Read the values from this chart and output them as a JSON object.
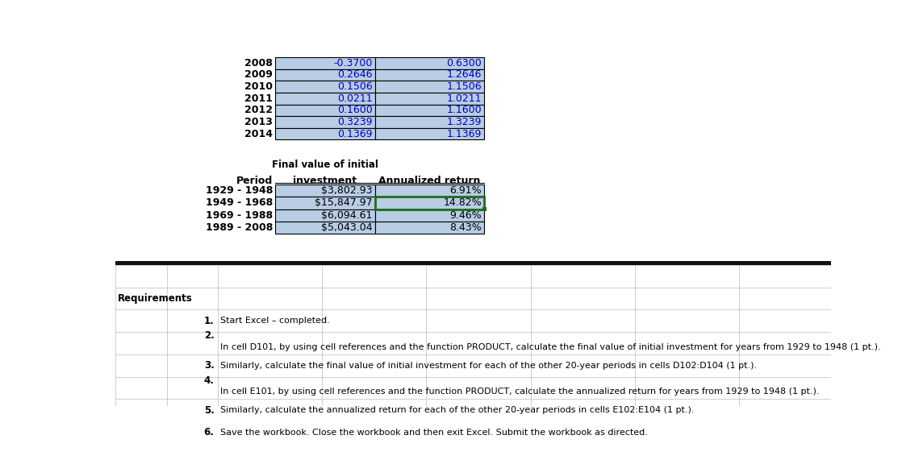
{
  "top_table": {
    "years": [
      "2008",
      "2009",
      "2010",
      "2011",
      "2012",
      "2013",
      "2014"
    ],
    "col1": [
      "-0.3700",
      "0.2646",
      "0.1506",
      "0.0211",
      "0.1600",
      "0.3239",
      "0.1369"
    ],
    "col2": [
      "0.6300",
      "1.2646",
      "1.1506",
      "1.0211",
      "1.1600",
      "1.3239",
      "1.1369"
    ]
  },
  "bottom_table": {
    "periods": [
      "1929 - 1948",
      "1949 - 1968",
      "1969 - 1988",
      "1989 - 2008"
    ],
    "final_values": [
      "$3,802.93",
      "$15,847.97",
      "$6,094.61",
      "$5,043.04"
    ],
    "annualized": [
      "6.91%",
      "14.82%",
      "9.46%",
      "8.43%"
    ]
  },
  "requirements": [
    {
      "num": "1.",
      "text1": "Start Excel – completed.",
      "text2": "",
      "indent": false
    },
    {
      "num": "2.",
      "text1": "",
      "text2": "In cell D101, by using cell references and the function PRODUCT, calculate the final value of initial investment for years from 1929 to 1948 (1 pt.).",
      "indent": true
    },
    {
      "num": "3.",
      "text1": "Similarly, calculate the final value of initial investment for each of the other 20-year periods in cells D102:D104 (1 pt.).",
      "text2": "",
      "indent": false
    },
    {
      "num": "4.",
      "text1": "",
      "text2": "In cell E101, by using cell references and the function PRODUCT, calculate the annualized return for years from 1929 to 1948 (1 pt.).",
      "indent": true
    },
    {
      "num": "5.",
      "text1": "Similarly, calculate the annualized return for each of the other 20-year periods in cells E102:E104 (1 pt.).",
      "text2": "",
      "indent": false
    },
    {
      "num": "6.",
      "text1": "Save the workbook. Close the workbook and then exit Excel. Submit the workbook as directed.",
      "text2": "",
      "indent": false
    }
  ],
  "cell_fill": "#b8cce4",
  "border_color": "#000000",
  "text_color_blue": "#0000cc",
  "text_color_black": "#000000",
  "selected_border": "#1f6b1f",
  "bg_color": "#ffffff",
  "sep_bar_color": "#111111",
  "grid_color": "#bbbbbb"
}
